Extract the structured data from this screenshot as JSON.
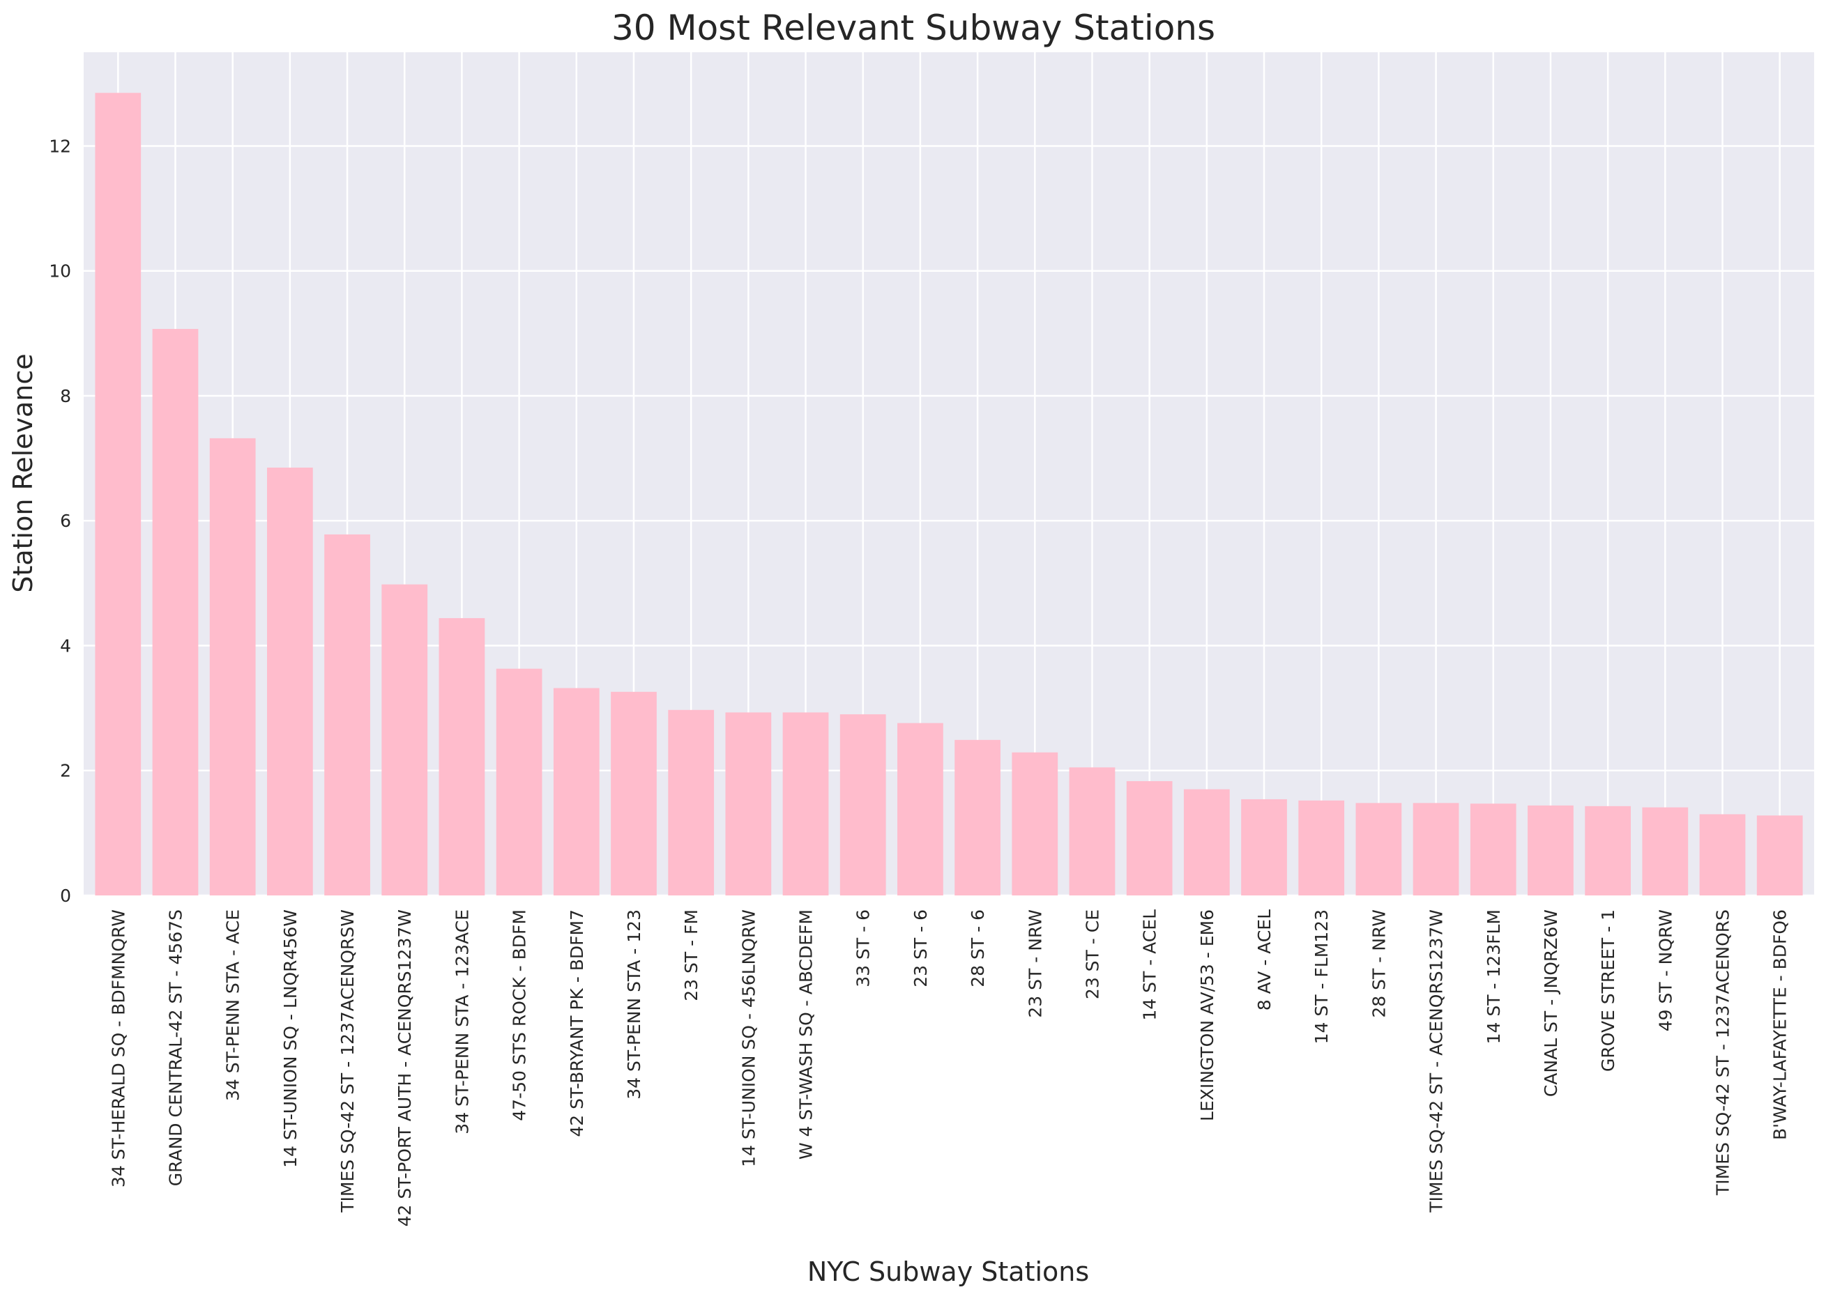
{
  "chart_data": {
    "type": "bar",
    "title": "30 Most Relevant Subway Stations",
    "xlabel": "NYC Subway Stations",
    "ylabel": "Station Relevance",
    "ylim": [
      0,
      13.5
    ],
    "yticks": [
      0,
      2,
      4,
      6,
      8,
      10,
      12
    ],
    "grid": true,
    "legend": "none",
    "colors": {
      "bar": "#ffbccc",
      "plot_background": "#eaeaf2",
      "grid": "#ffffff"
    },
    "categories": [
      "34 ST-HERALD SQ - BDFMNQRW",
      "GRAND CENTRAL-42 ST - 4567S",
      "34 ST-PENN STA - ACE",
      "14 ST-UNION SQ - LNQR456W",
      "TIMES SQ-42 ST - 1237ACENQRSW",
      "42 ST-PORT AUTH - ACENQRS1237W",
      "34 ST-PENN STA - 123ACE",
      "47-50 STS ROCK - BDFM",
      "42 ST-BRYANT PK - BDFM7",
      "34 ST-PENN STA - 123",
      "23 ST - FM",
      "14 ST-UNION SQ - 456LNQRW",
      "W 4 ST-WASH SQ - ABCDEFM",
      "33 ST - 6",
      "23 ST - 6",
      "28 ST - 6",
      "23 ST - NRW",
      "23 ST - CE",
      "14 ST - ACEL",
      "LEXINGTON AV/53 - EM6",
      "8 AV - ACEL",
      "14 ST - FLM123",
      "28 ST - NRW",
      "TIMES SQ-42 ST - ACENQRS1237W",
      "14 ST - 123FLM",
      "CANAL ST - JNQRZ6W",
      "GROVE STREET - 1",
      "49 ST - NQRW",
      "TIMES SQ-42 ST - 1237ACENQRS",
      "B'WAY-LAFAYETTE - BDFQ6"
    ],
    "values": [
      12.85,
      9.07,
      7.32,
      6.85,
      5.78,
      4.98,
      4.44,
      3.63,
      3.32,
      3.26,
      2.97,
      2.93,
      2.93,
      2.9,
      2.76,
      2.49,
      2.29,
      2.05,
      1.83,
      1.7,
      1.54,
      1.52,
      1.48,
      1.48,
      1.47,
      1.44,
      1.43,
      1.41,
      1.3,
      1.28
    ]
  }
}
